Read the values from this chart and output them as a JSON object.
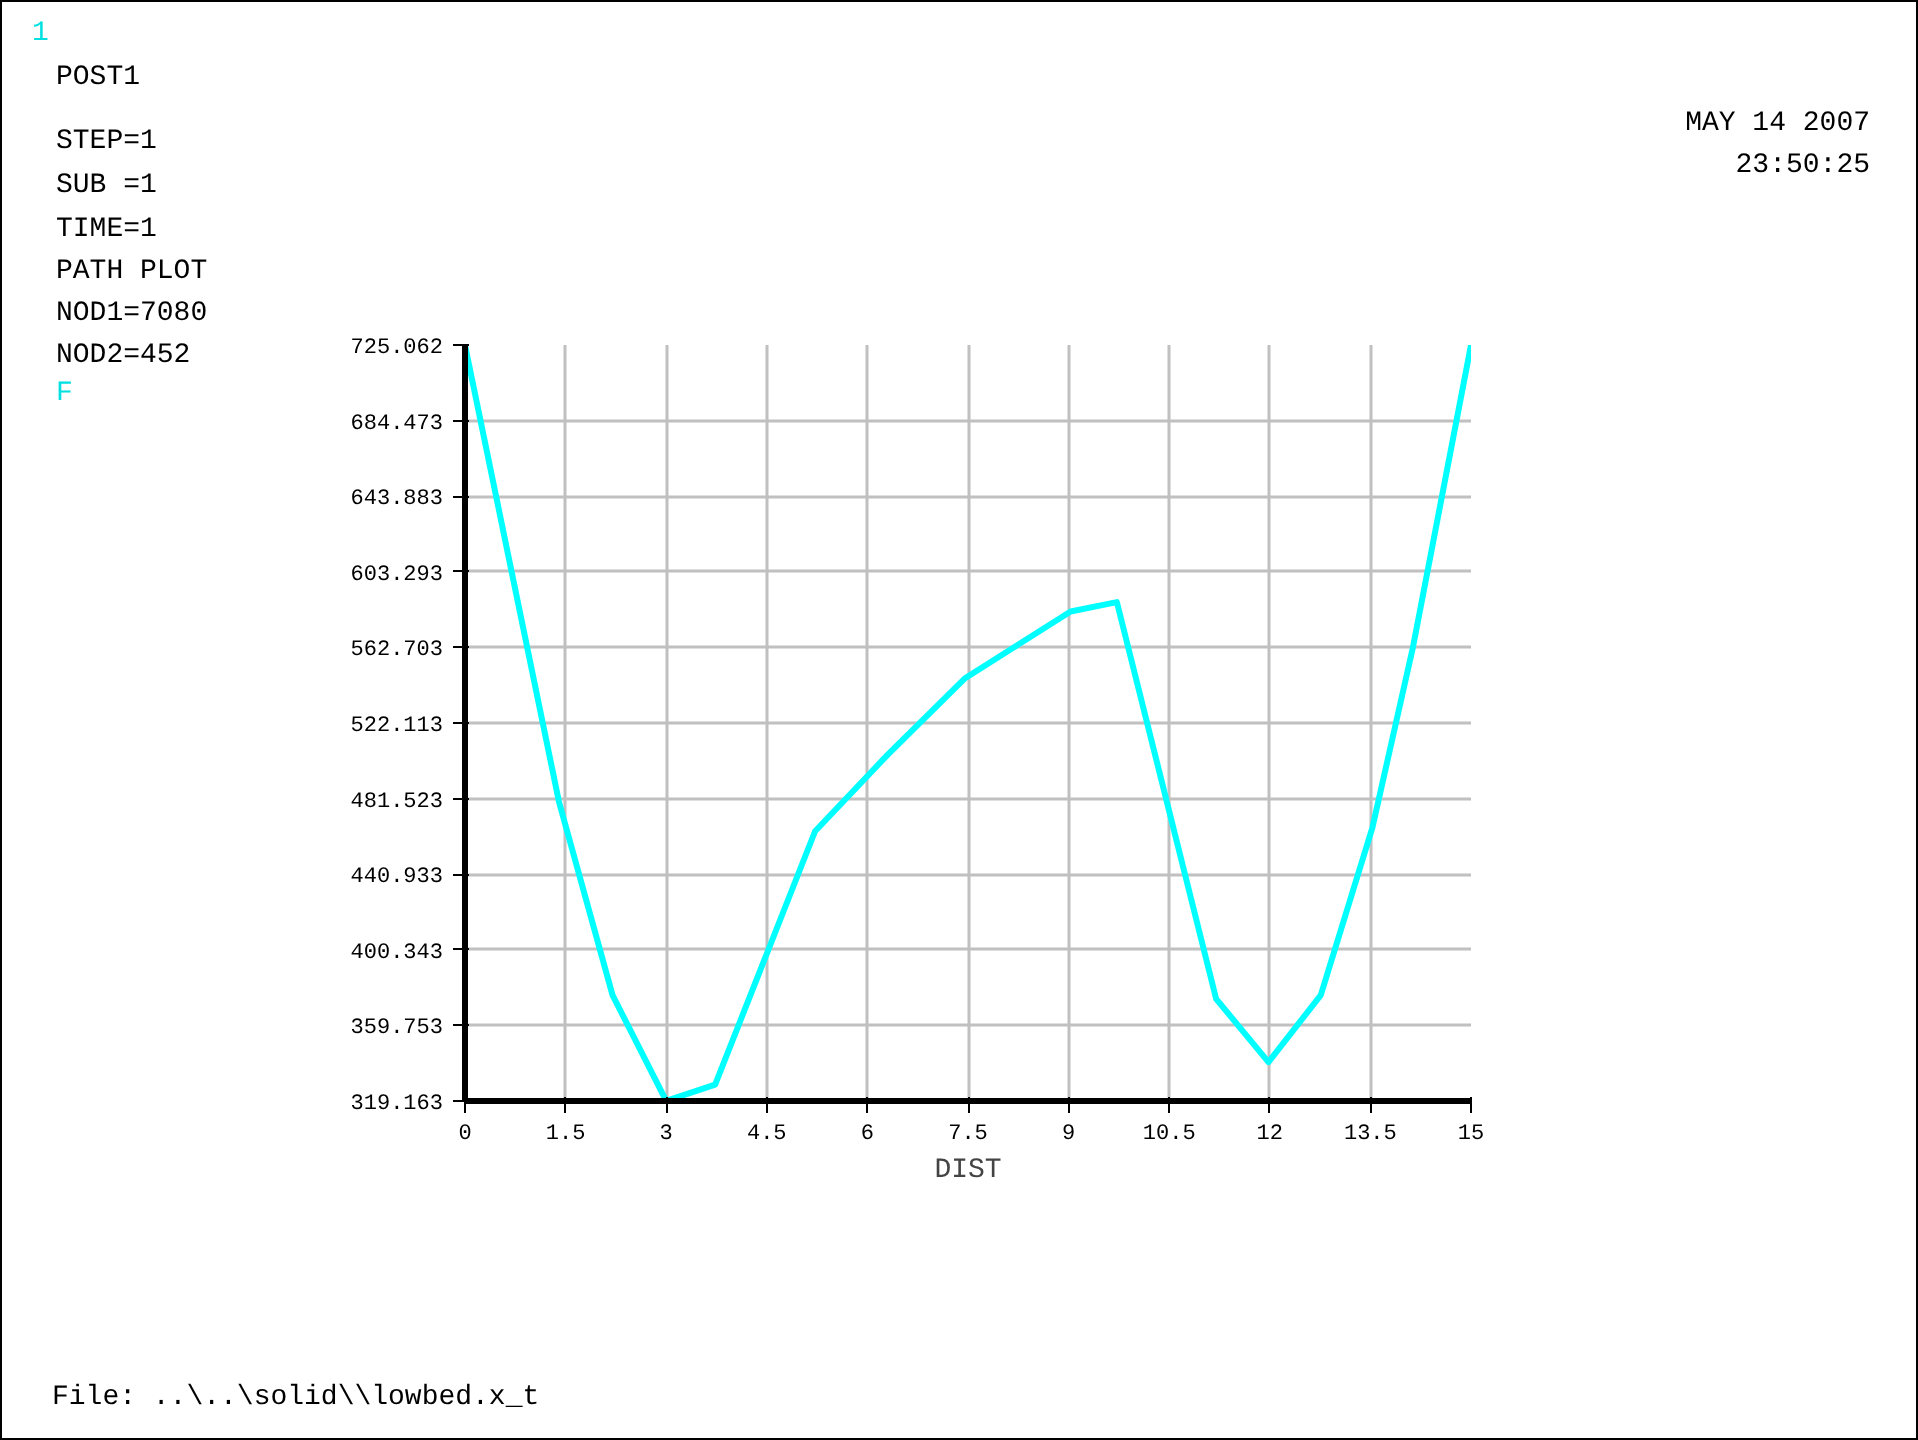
{
  "chart_data": {
    "type": "line",
    "xlabel": "DIST",
    "x": [
      0,
      1.4,
      2.2,
      3.0,
      3.73,
      5.22,
      6.3,
      7.45,
      9.03,
      9.72,
      11.2,
      11.98,
      12.76,
      13.53,
      14.13,
      15
    ],
    "series": [
      {
        "color": "#00ffff",
        "values": [
          725,
          480,
          376,
          319.2,
          328,
          464,
          505,
          546,
          582,
          587,
          374,
          340,
          376,
          466,
          562,
          725
        ]
      }
    ],
    "xlim": [
      0,
      15
    ],
    "ylim": [
      319.163,
      725.062
    ],
    "xticks": [
      0,
      1.5,
      3,
      4.5,
      6,
      7.5,
      9,
      10.5,
      12,
      13.5,
      15
    ],
    "yticks": [
      319.163,
      359.753,
      400.343,
      440.933,
      481.523,
      522.113,
      562.703,
      603.293,
      643.883,
      684.473,
      725.062
    ],
    "grid": true,
    "marker": "none",
    "line_style": "solid",
    "annotations": [
      "1",
      "POST1",
      "STEP=1",
      "SUB =1",
      "TIME=1",
      "PATH PLOT",
      "NOD1=7080",
      "NOD2=452",
      "F",
      "MAY 14 2007",
      "23:50:25",
      "File: ..\\..\\solid\\\\lowbed.x_t"
    ]
  }
}
